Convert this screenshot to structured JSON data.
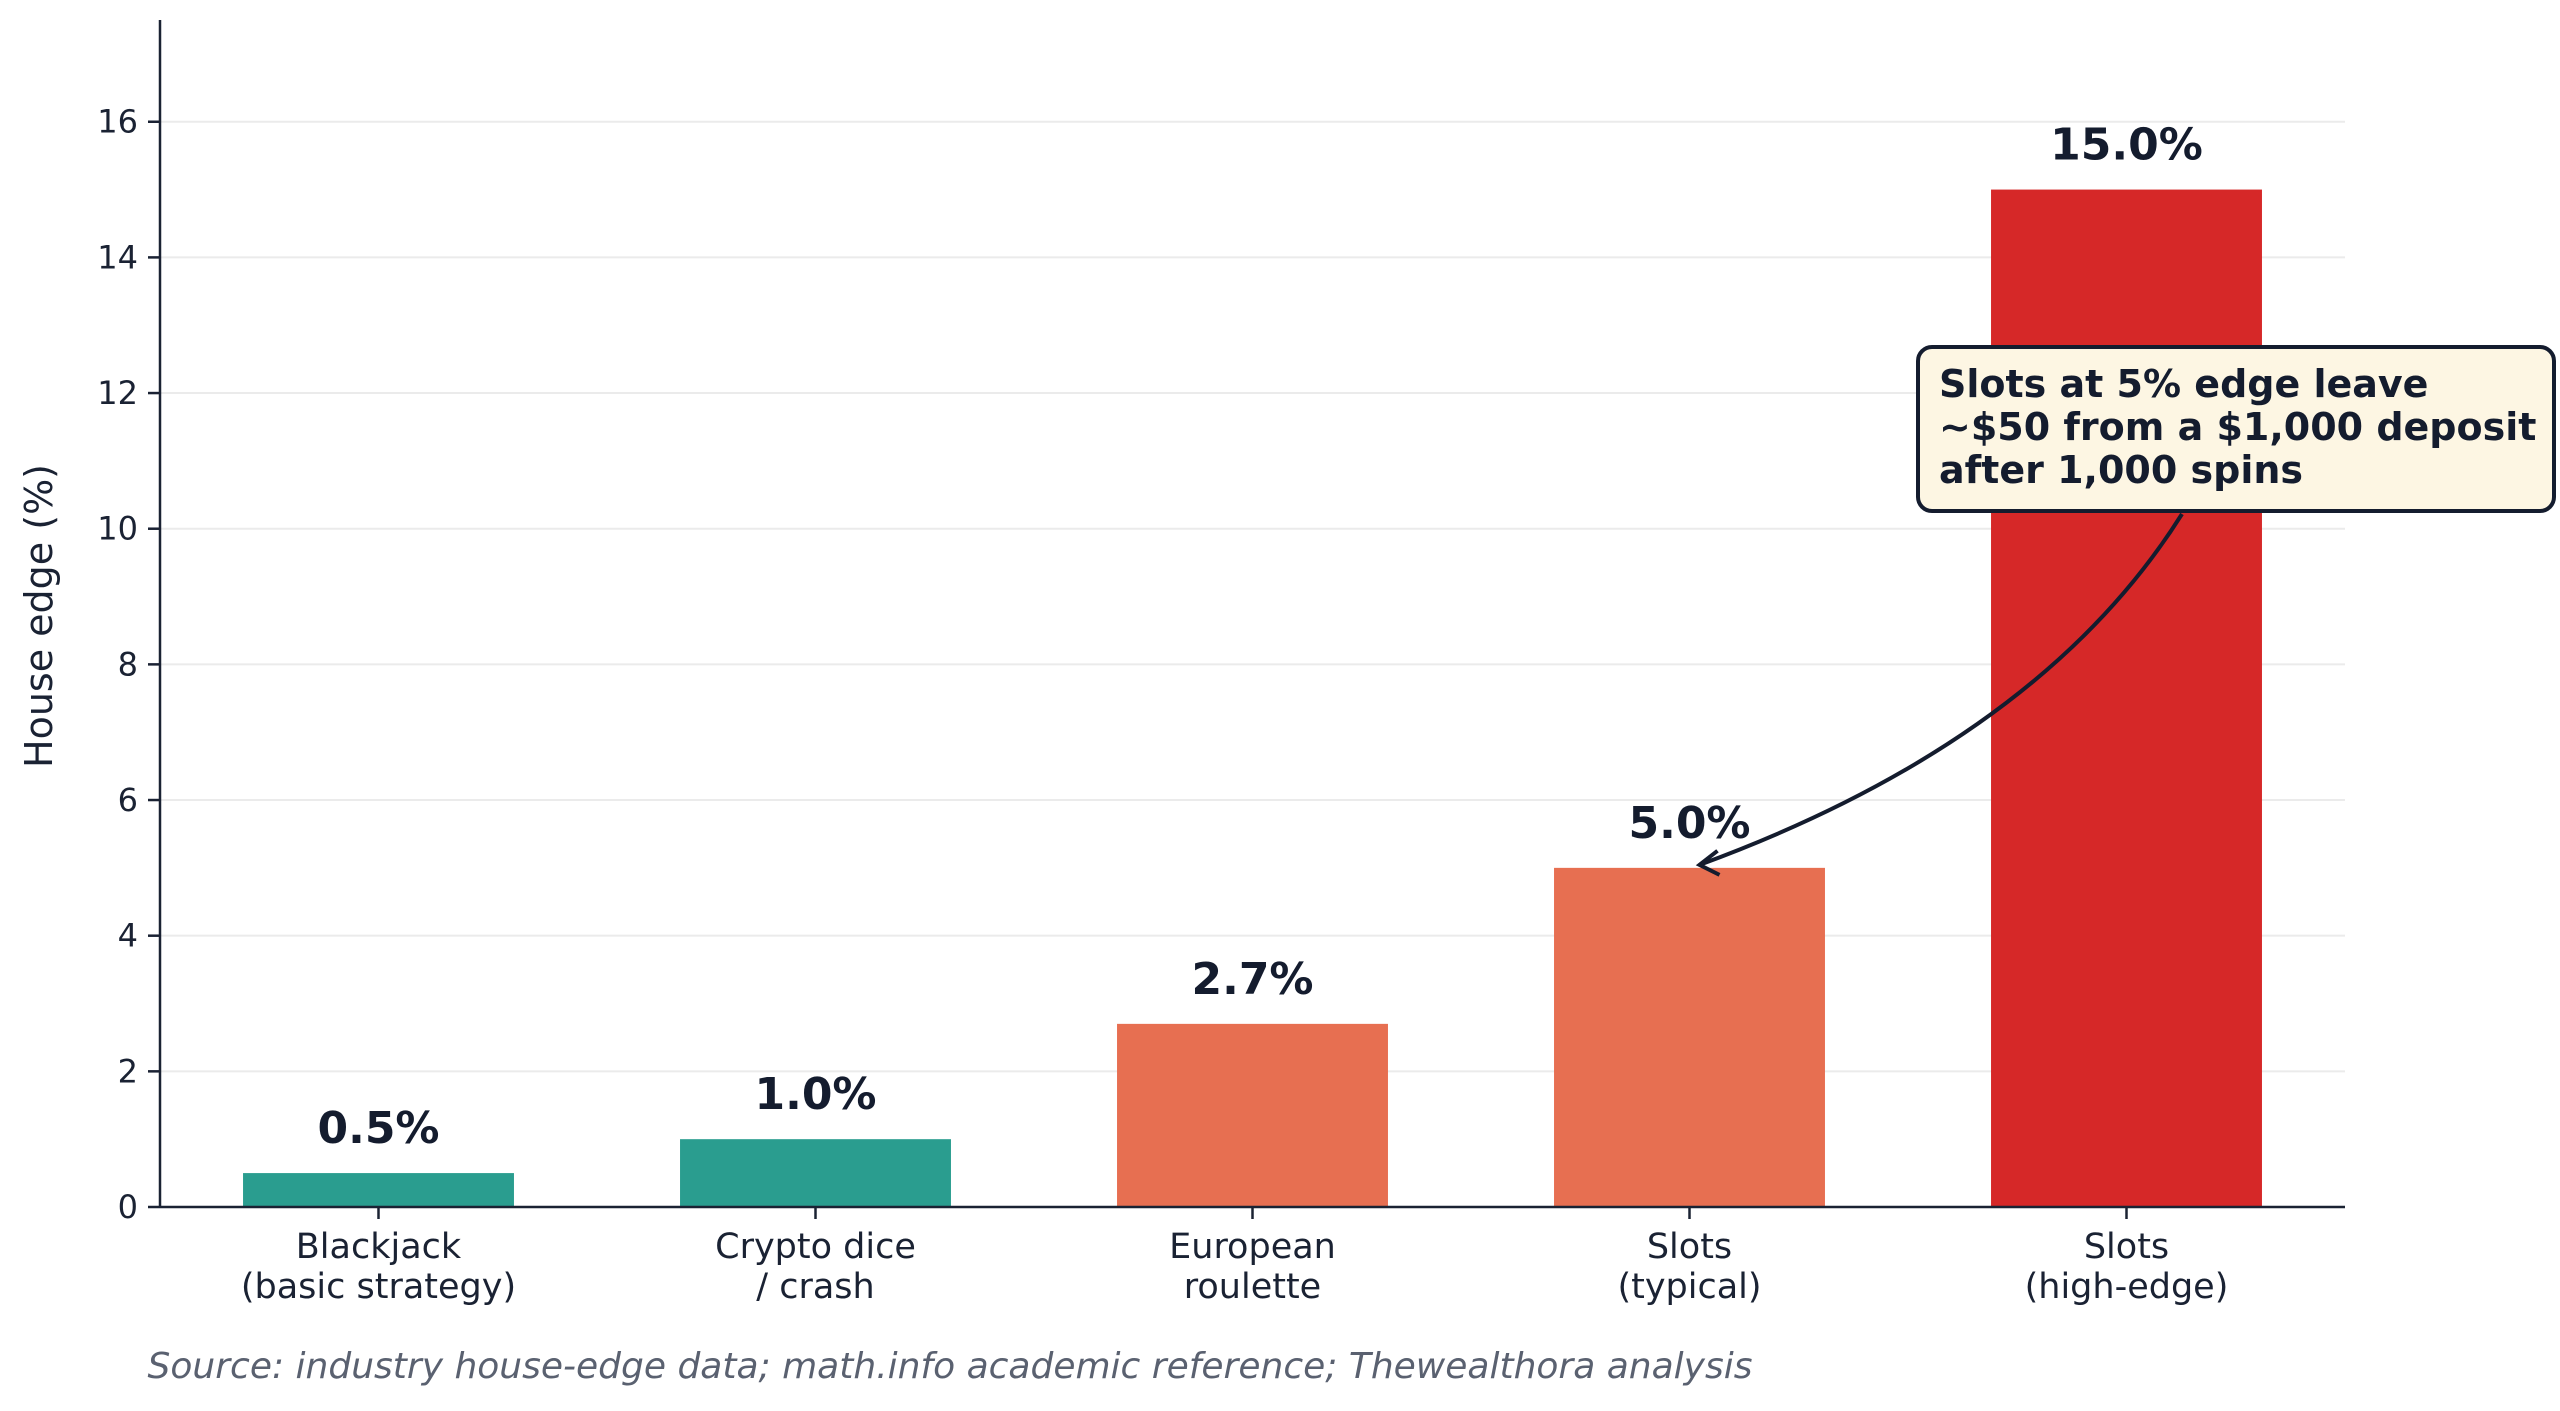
{
  "chart_data": {
    "type": "bar",
    "categories": [
      [
        "Blackjack",
        "(basic strategy)"
      ],
      [
        "Crypto dice",
        "/ crash"
      ],
      [
        "European",
        "roulette"
      ],
      [
        "Slots",
        "(typical)"
      ],
      [
        "Slots",
        "(high-edge)"
      ]
    ],
    "values": [
      0.5,
      1.0,
      2.7,
      5.0,
      15.0
    ],
    "value_labels": [
      "0.5%",
      "1.0%",
      "2.7%",
      "5.0%",
      "15.0%"
    ],
    "bar_colors": [
      "#2a9d8f",
      "#2a9d8f",
      "#e76f51",
      "#e76f51",
      "#d62828"
    ],
    "ylabel": "House edge (%)",
    "ylim": [
      0,
      17.5
    ],
    "yticks": [
      0,
      2,
      4,
      6,
      8,
      10,
      12,
      14,
      16
    ],
    "grid": "horizontal",
    "annotation": {
      "lines": [
        "Slots at 5% edge leave",
        "~$50 from a $1,000 deposit",
        "after 1,000 spins"
      ],
      "target_category_index": 3,
      "target_value": 5.0
    },
    "source": "Source: industry house-edge data; math.info academic reference; Thewealthora analysis"
  }
}
